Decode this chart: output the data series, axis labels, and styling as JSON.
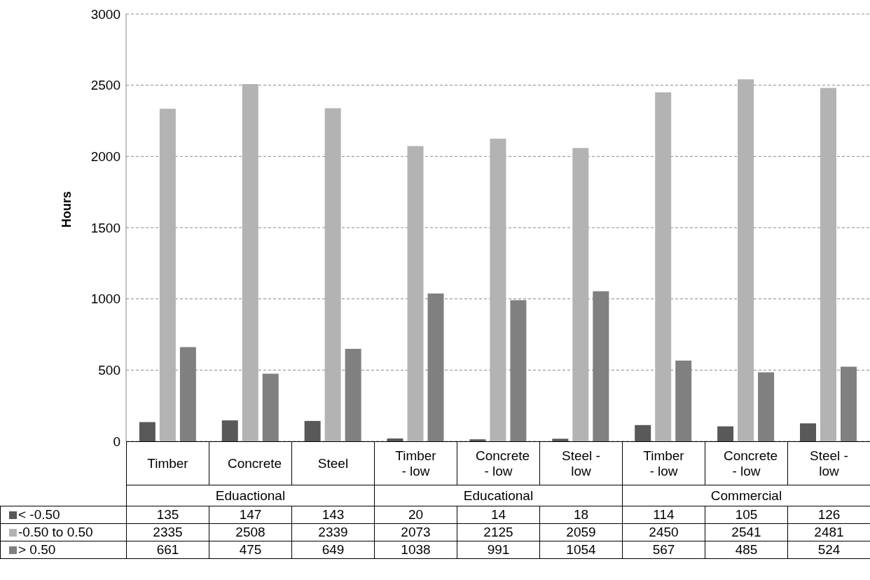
{
  "chart_data": {
    "type": "bar",
    "ylabel": "Hours",
    "categories": [
      "Timber",
      "Concrete",
      "Steel",
      "Timber - low",
      "Concrete - low",
      "Steel - low",
      "Timber - low",
      "Concrete - low",
      "Steel - low"
    ],
    "annotations": [
      "Eduactional",
      "Educational",
      "Commercial"
    ],
    "series": [
      {
        "name": "< -0.50",
        "color": "#595959",
        "values": [
          135,
          147,
          143,
          20,
          14,
          18,
          114,
          105,
          126
        ]
      },
      {
        "name": "-0.50 to 0.50",
        "color": "#b3b3b3",
        "values": [
          2335,
          2508,
          2339,
          2073,
          2125,
          2059,
          2450,
          2541,
          2481
        ]
      },
      {
        "name": "> 0.50",
        "color": "#808080",
        "values": [
          661,
          475,
          649,
          1038,
          991,
          1054,
          567,
          485,
          524
        ]
      }
    ],
    "ylim": [
      0,
      3000
    ],
    "yticks": [
      0,
      500,
      1000,
      1500,
      2000,
      2500,
      3000
    ],
    "grid": "y",
    "legend": "bottom",
    "data_labels": true
  }
}
